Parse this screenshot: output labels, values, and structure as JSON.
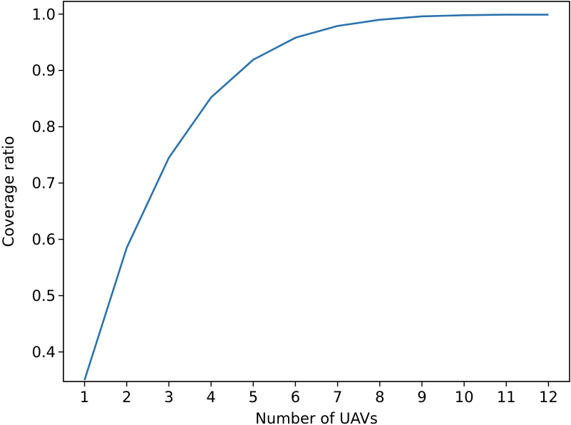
{
  "chart_data": {
    "type": "line",
    "xlabel": "Number of UAVs",
    "ylabel": "Coverage ratio",
    "x": [
      1,
      2,
      3,
      4,
      5,
      6,
      7,
      8,
      9,
      10,
      11,
      12
    ],
    "series": [
      {
        "values": [
          0.35,
          0.585,
          0.745,
          0.852,
          0.919,
          0.958,
          0.979,
          0.99,
          0.996,
          0.998,
          0.999,
          0.999
        ],
        "color": "#2b72ad"
      }
    ],
    "xlim": [
      0.5,
      12.5
    ],
    "ylim": [
      0.3475,
      1.0225
    ],
    "xticks": [
      1,
      2,
      3,
      4,
      5,
      6,
      7,
      8,
      9,
      10,
      11,
      12
    ],
    "yticks": [
      "0.4",
      "0.5",
      "0.6",
      "0.7",
      "0.8",
      "0.9",
      "1.0"
    ],
    "grid": false,
    "legend": "none"
  }
}
